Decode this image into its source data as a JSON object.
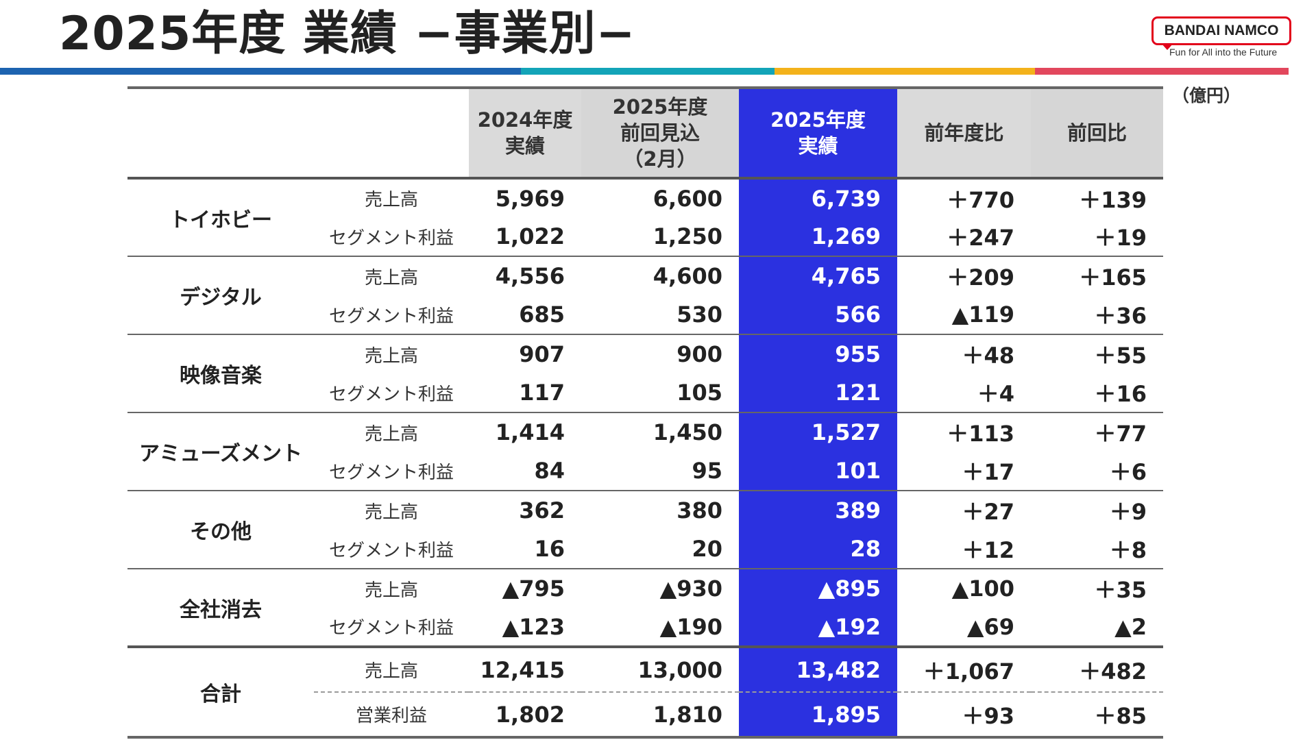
{
  "header": {
    "title": "2025年度 業績 −事業別−",
    "unit": "（億円）"
  },
  "brand": {
    "logo_text": "BANDAI NAMCO",
    "tagline": "Fun for All into the Future",
    "colors": {
      "logo_red": "#e2001a",
      "bar_blue": "#1d63b0",
      "bar_teal": "#13a4b8",
      "bar_yellow": "#f3b21b",
      "bar_pink": "#e2475d",
      "highlight_blue": "#2b31e0"
    }
  },
  "table": {
    "columns": [
      {
        "line1": "2024年度",
        "line2": "実績",
        "line3": ""
      },
      {
        "line1": "2025年度",
        "line2": "前回見込",
        "line3": "（2月）"
      },
      {
        "line1": "2025年度",
        "line2": "実績",
        "line3": ""
      },
      {
        "line1": "前年度比",
        "line2": "",
        "line3": ""
      },
      {
        "line1": "前回比",
        "line2": "",
        "line3": ""
      }
    ],
    "segments": [
      {
        "name": "トイホビー",
        "rows": [
          {
            "metric": "売上高",
            "fy2024": "5,969",
            "forecast": "6,600",
            "fy2025": "6,739",
            "yoy": "＋770",
            "vs_forecast": "＋139"
          },
          {
            "metric": "セグメント利益",
            "fy2024": "1,022",
            "forecast": "1,250",
            "fy2025": "1,269",
            "yoy": "＋247",
            "vs_forecast": "＋19"
          }
        ]
      },
      {
        "name": "デジタル",
        "rows": [
          {
            "metric": "売上高",
            "fy2024": "4,556",
            "forecast": "4,600",
            "fy2025": "4,765",
            "yoy": "＋209",
            "vs_forecast": "＋165"
          },
          {
            "metric": "セグメント利益",
            "fy2024": "685",
            "forecast": "530",
            "fy2025": "566",
            "yoy": "▲119",
            "vs_forecast": "＋36"
          }
        ]
      },
      {
        "name": "映像音楽",
        "rows": [
          {
            "metric": "売上高",
            "fy2024": "907",
            "forecast": "900",
            "fy2025": "955",
            "yoy": "＋48",
            "vs_forecast": "＋55"
          },
          {
            "metric": "セグメント利益",
            "fy2024": "117",
            "forecast": "105",
            "fy2025": "121",
            "yoy": "＋4",
            "vs_forecast": "＋16"
          }
        ]
      },
      {
        "name": "アミューズメント",
        "rows": [
          {
            "metric": "売上高",
            "fy2024": "1,414",
            "forecast": "1,450",
            "fy2025": "1,527",
            "yoy": "＋113",
            "vs_forecast": "＋77"
          },
          {
            "metric": "セグメント利益",
            "fy2024": "84",
            "forecast": "95",
            "fy2025": "101",
            "yoy": "＋17",
            "vs_forecast": "＋6"
          }
        ]
      },
      {
        "name": "その他",
        "rows": [
          {
            "metric": "売上高",
            "fy2024": "362",
            "forecast": "380",
            "fy2025": "389",
            "yoy": "＋27",
            "vs_forecast": "＋9"
          },
          {
            "metric": "セグメント利益",
            "fy2024": "16",
            "forecast": "20",
            "fy2025": "28",
            "yoy": "＋12",
            "vs_forecast": "＋8"
          }
        ]
      },
      {
        "name": "全社消去",
        "rows": [
          {
            "metric": "売上高",
            "fy2024": "▲795",
            "forecast": "▲930",
            "fy2025": "▲895",
            "yoy": "▲100",
            "vs_forecast": "＋35"
          },
          {
            "metric": "セグメント利益",
            "fy2024": "▲123",
            "forecast": "▲190",
            "fy2025": "▲192",
            "yoy": "▲69",
            "vs_forecast": "▲2"
          }
        ]
      }
    ],
    "total": {
      "name": "合計",
      "rows": [
        {
          "metric": "売上高",
          "fy2024": "12,415",
          "forecast": "13,000",
          "fy2025": "13,482",
          "yoy": "＋1,067",
          "vs_forecast": "＋482"
        },
        {
          "metric": "営業利益",
          "fy2024": "1,802",
          "forecast": "1,810",
          "fy2025": "1,895",
          "yoy": "＋93",
          "vs_forecast": "＋85"
        }
      ]
    }
  }
}
